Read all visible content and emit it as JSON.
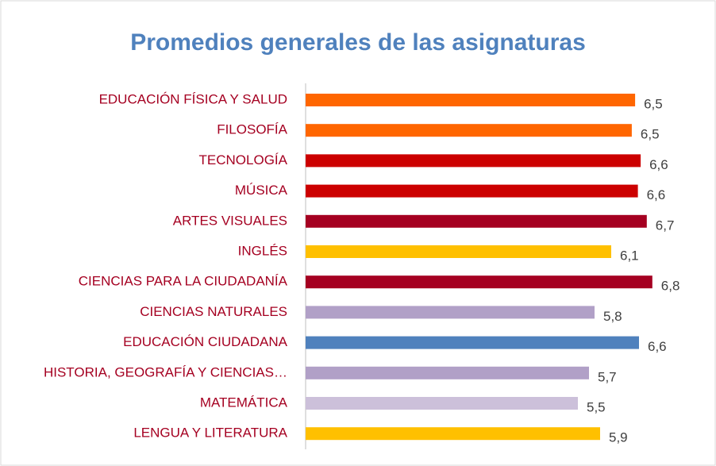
{
  "chart_data": {
    "type": "barh",
    "title": "Promedios generales de las asignaturas",
    "categories": [
      "EDUCACIÓN FÍSICA Y SALUD",
      "FILOSOFÍA",
      "TECNOLOGÍA",
      "MÚSICA",
      "ARTES VISUALES",
      "INGLÉS",
      "CIENCIAS PARA LA CIUDADANÍA",
      "CIENCIAS NATURALES",
      "EDUCACIÓN CIUDADANA",
      "HISTORIA, GEOGRAFÍA Y CIENCIAS…",
      "MATEMÁTICA",
      "LENGUA Y LITERATURA"
    ],
    "values": [
      6.53,
      6.47,
      6.63,
      6.58,
      6.74,
      6.1,
      6.84,
      5.8,
      6.6,
      5.7,
      5.5,
      5.9
    ],
    "value_labels": [
      "6,5",
      "6,5",
      "6,6",
      "6,6",
      "6,7",
      "6,1",
      "6,8",
      "5,8",
      "6,6",
      "5,7",
      "5,5",
      "5,9"
    ],
    "colors": [
      "#ff6600",
      "#ff6600",
      "#cc0000",
      "#cc0000",
      "#a50021",
      "#ffc000",
      "#a50021",
      "#b1a0c7",
      "#4f81bd",
      "#b1a0c7",
      "#ccc0da",
      "#ffc000"
    ],
    "xlim": [
      0.6,
      7.7
    ]
  }
}
